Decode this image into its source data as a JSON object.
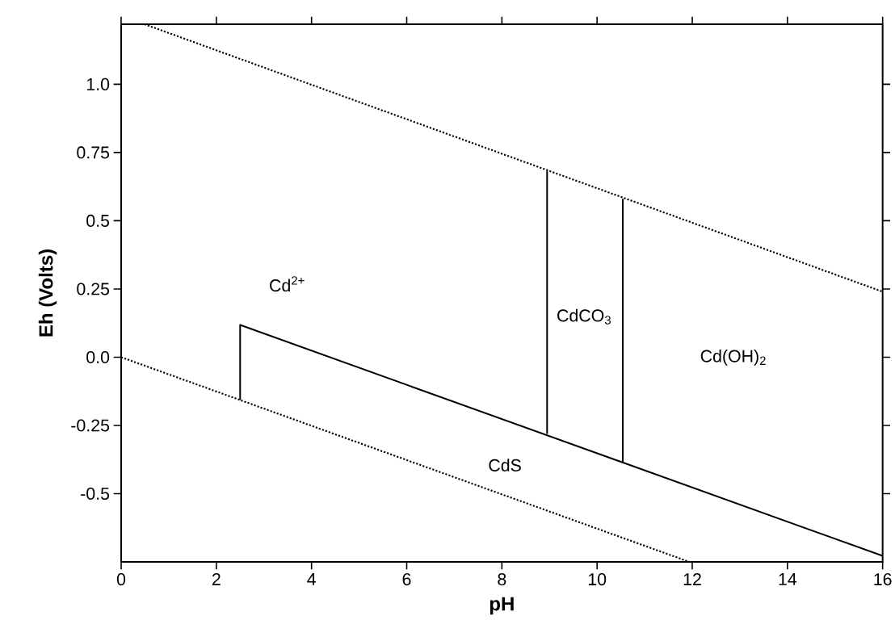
{
  "chart_data": {
    "type": "line",
    "xlabel": "pH",
    "ylabel": "Eh (Volts)",
    "xlim": [
      0,
      16
    ],
    "ylim": [
      -0.75,
      1.22
    ],
    "xticks": [
      0,
      2,
      4,
      6,
      8,
      10,
      12,
      14,
      16
    ],
    "yticks": [
      -0.5,
      -0.25,
      {
        "value": 0,
        "label": "0.0"
      },
      0.25,
      0.5,
      0.75,
      {
        "value": 1,
        "label": "1.0"
      }
    ],
    "series": [
      {
        "color": "#000000",
        "line_style": "dotted",
        "x": [
          0.49,
          16
        ],
        "values": [
          1.22,
          0.24
        ]
      },
      {
        "color": "#000000",
        "line_style": "dotted",
        "x": [
          0,
          11.94
        ],
        "values": [
          0,
          -0.75
        ]
      },
      {
        "color": "#000000",
        "line_style": "solid",
        "x": [
          2.5,
          2.5,
          16
        ],
        "values": [
          -0.157,
          0.118,
          -0.728
        ]
      },
      {
        "color": "#000000",
        "line_style": "solid",
        "x": [
          8.95,
          8.95
        ],
        "values": [
          0.683,
          -0.281
        ]
      },
      {
        "color": "#000000",
        "line_style": "solid",
        "x": [
          10.54,
          10.54
        ],
        "values": [
          0.58,
          -0.385
        ]
      }
    ],
    "annotations": [
      "Cd$^{2+}$",
      "CdCO$_{3}$",
      "Cd(OH)$_{2}$",
      "CdS"
    ]
  }
}
